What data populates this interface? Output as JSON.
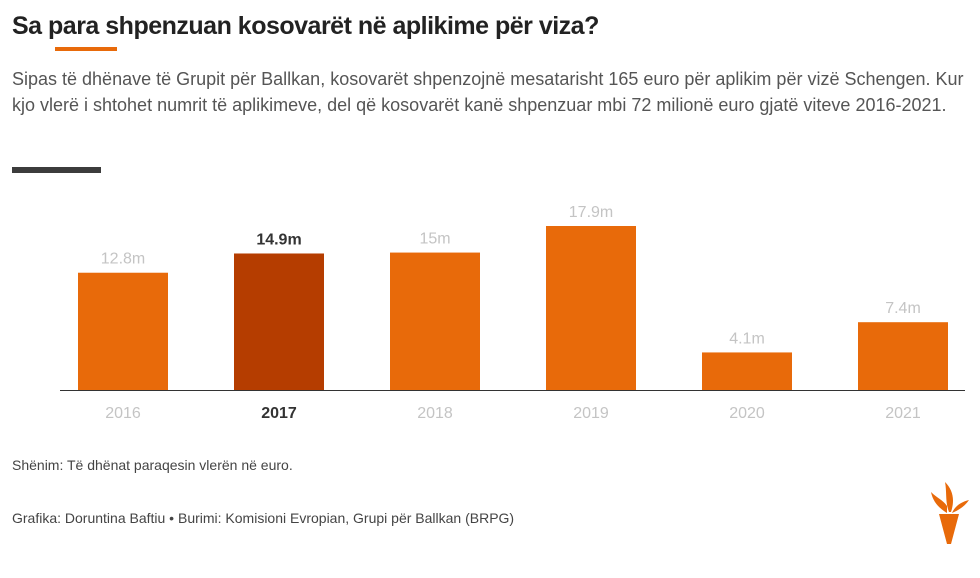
{
  "header": {
    "title": "Sa para shpenzuan kosovarët në aplikime për viza?",
    "subtitle": "Sipas të dhënave të Grupit për Ballkan, kosovarët shpenzojnë mesatarisht 165 euro për aplikim për vizë Schengen. Kur kjo vlerë i shtohet numrit të aplikimeve, del që kosovarët kanë shpenzuar mbi 72 milionë euro gjatë viteve 2016-2021."
  },
  "chart_data": {
    "type": "bar",
    "title": "Sa para shpenzuan kosovarët në aplikime për viza?",
    "xlabel": "",
    "ylabel": "",
    "categories": [
      "2016",
      "2017",
      "2018",
      "2019",
      "2020",
      "2021"
    ],
    "values": [
      12.8,
      14.9,
      15,
      17.9,
      4.1,
      7.4
    ],
    "value_labels": [
      "12.8m",
      "14.9m",
      "15m",
      "17.9m",
      "4.1m",
      "7.4m"
    ],
    "highlighted": "2017",
    "ylim": [
      0,
      17.9
    ],
    "grid": false,
    "colors": {
      "bar": "#e86a0a",
      "highlight": "#b53d00"
    }
  },
  "footer": {
    "note": "Shënim: Të dhënat paraqesin vlerën në euro.",
    "credit": "Grafika: Doruntina Baftiu • Burimi: Komisioni Evropian, Grupi për Ballkan (BRPG)"
  }
}
